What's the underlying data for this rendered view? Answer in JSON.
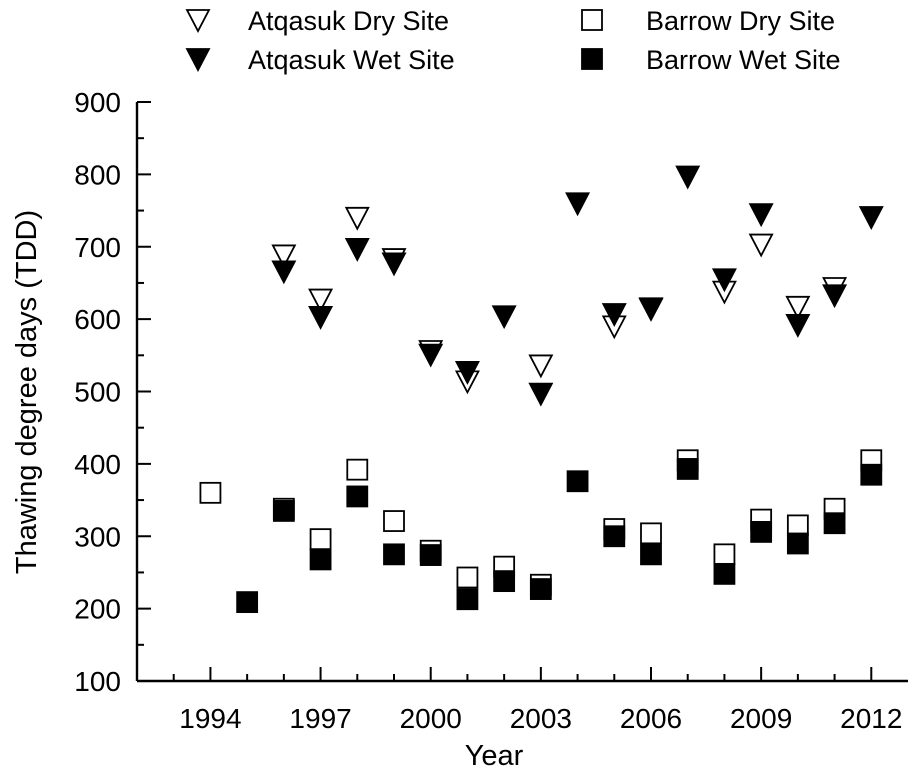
{
  "chart_data": {
    "type": "scatter",
    "xlabel": "Year",
    "ylabel": "Thawing degree days (TDD)",
    "xlim": [
      1992,
      2013
    ],
    "ylim": [
      100,
      900
    ],
    "xticks": [
      1994,
      1997,
      2000,
      2003,
      2006,
      2009,
      2012
    ],
    "yticks": [
      100,
      200,
      300,
      400,
      500,
      600,
      700,
      800,
      900
    ],
    "grid": false,
    "legend_position": "top",
    "series": [
      {
        "name": "Atqasuk Dry Site",
        "marker": "triangle-down-open",
        "points": [
          [
            1996,
            688
          ],
          [
            1997,
            627
          ],
          [
            1998,
            740
          ],
          [
            1999,
            683
          ],
          [
            2000,
            556
          ],
          [
            2001,
            514
          ],
          [
            2003,
            536
          ],
          [
            2005,
            590
          ],
          [
            2006,
            614
          ],
          [
            2008,
            638
          ],
          [
            2009,
            703
          ],
          [
            2010,
            617
          ],
          [
            2011,
            643
          ]
        ]
      },
      {
        "name": "Atqasuk Wet Site",
        "marker": "triangle-down-filled",
        "points": [
          [
            1996,
            666
          ],
          [
            1997,
            603
          ],
          [
            1998,
            697
          ],
          [
            1999,
            677
          ],
          [
            2000,
            551
          ],
          [
            2001,
            527
          ],
          [
            2002,
            604
          ],
          [
            2003,
            497
          ],
          [
            2004,
            760
          ],
          [
            2005,
            607
          ],
          [
            2006,
            615
          ],
          [
            2007,
            797
          ],
          [
            2008,
            655
          ],
          [
            2009,
            745
          ],
          [
            2010,
            592
          ],
          [
            2011,
            633
          ],
          [
            2012,
            741
          ]
        ]
      },
      {
        "name": "Barrow Dry Site",
        "marker": "square-open",
        "points": [
          [
            1994,
            360
          ],
          [
            1996,
            338
          ],
          [
            1997,
            296
          ],
          [
            1998,
            392
          ],
          [
            1999,
            321
          ],
          [
            2000,
            280
          ],
          [
            2001,
            243
          ],
          [
            2002,
            258
          ],
          [
            2003,
            233
          ],
          [
            2005,
            310
          ],
          [
            2006,
            304
          ],
          [
            2007,
            405
          ],
          [
            2008,
            275
          ],
          [
            2009,
            323
          ],
          [
            2010,
            315
          ],
          [
            2011,
            338
          ],
          [
            2012,
            405
          ]
        ]
      },
      {
        "name": "Barrow Wet Site",
        "marker": "square-filled",
        "points": [
          [
            1995,
            209
          ],
          [
            1996,
            335
          ],
          [
            1997,
            268
          ],
          [
            1998,
            355
          ],
          [
            1999,
            275
          ],
          [
            2000,
            274
          ],
          [
            2001,
            213
          ],
          [
            2002,
            238
          ],
          [
            2003,
            227
          ],
          [
            2004,
            376
          ],
          [
            2005,
            300
          ],
          [
            2006,
            275
          ],
          [
            2007,
            393
          ],
          [
            2008,
            248
          ],
          [
            2009,
            306
          ],
          [
            2010,
            290
          ],
          [
            2011,
            318
          ],
          [
            2012,
            385
          ]
        ]
      }
    ]
  }
}
